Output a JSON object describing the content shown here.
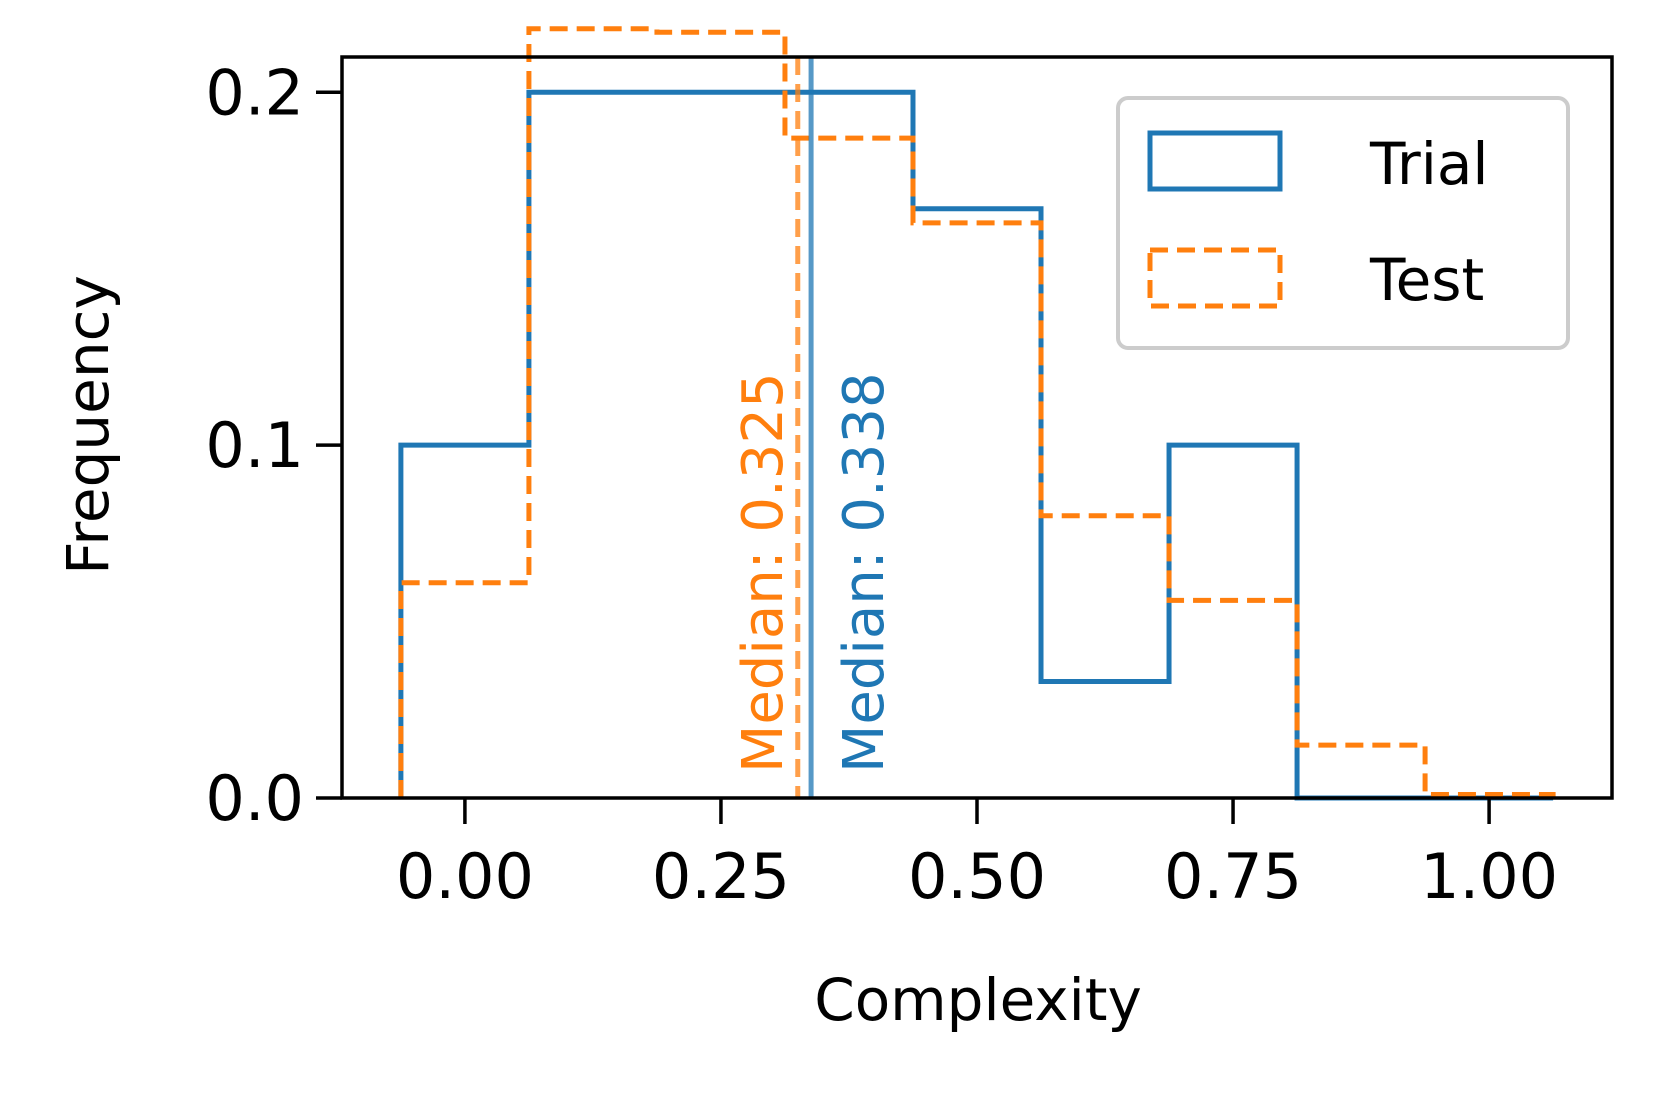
{
  "chart_data": {
    "type": "histogram",
    "xlabel": "Complexity",
    "ylabel": "Frequency",
    "xlim": [
      -0.12,
      1.12
    ],
    "ylim": [
      0,
      0.21
    ],
    "xticks": [
      0.0,
      0.25,
      0.5,
      0.75,
      1.0
    ],
    "xtick_labels": [
      "0.00",
      "0.25",
      "0.50",
      "0.75",
      "1.00"
    ],
    "yticks": [
      0.0,
      0.1,
      0.2
    ],
    "ytick_labels": [
      "0.0",
      "0.1",
      "0.2"
    ],
    "bin_edges": [
      -0.0625,
      0.0625,
      0.1875,
      0.3125,
      0.4375,
      0.5625,
      0.6875,
      0.8125,
      0.9375,
      1.0625
    ],
    "series": [
      {
        "name": "Trial",
        "style": "solid",
        "color": "#1f77b4",
        "values": [
          0.1,
          0.2,
          0.2,
          0.2,
          0.167,
          0.033,
          0.1,
          0.0,
          0.0
        ]
      },
      {
        "name": "Test",
        "style": "dashed",
        "color": "#ff7f0e",
        "values": [
          0.061,
          0.218,
          0.217,
          0.187,
          0.163,
          0.08,
          0.056,
          0.015,
          0.001
        ]
      }
    ],
    "medians": [
      {
        "series": "Test",
        "value": 0.325,
        "label": "Median: 0.325",
        "color": "#ff7f0e",
        "style": "dashed"
      },
      {
        "series": "Trial",
        "value": 0.338,
        "label": "Median: 0.338",
        "color": "#1f77b4",
        "style": "solid"
      }
    ],
    "legend": {
      "position": "top-right",
      "entries": [
        "Trial",
        "Test"
      ]
    },
    "grid": false
  }
}
